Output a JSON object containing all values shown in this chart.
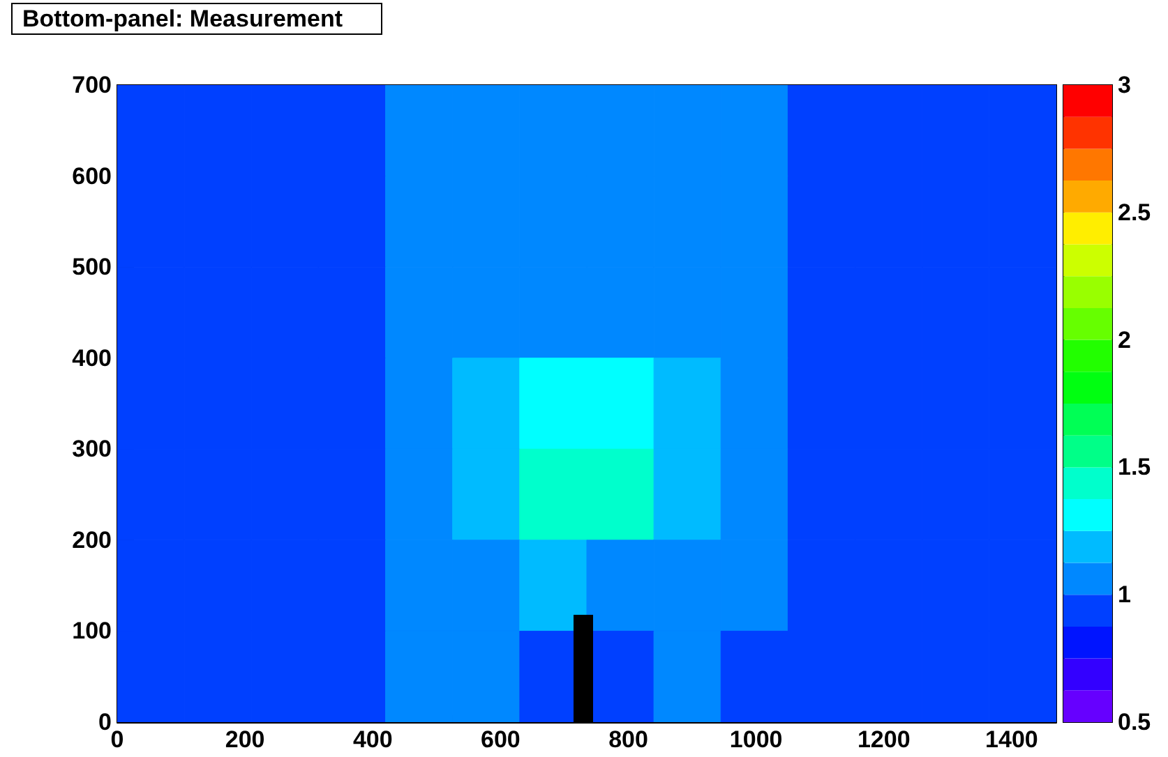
{
  "chart_data": {
    "type": "heatmap",
    "title": "Bottom-panel: Measurement",
    "cells": [
      [
        0.94,
        0.94,
        0.94,
        0.94,
        1.06,
        1.06,
        1.06,
        1.06,
        1.06,
        1.06,
        0.94,
        0.94,
        0.94,
        0.94
      ],
      [
        0.94,
        0.94,
        0.94,
        0.94,
        1.06,
        1.06,
        1.06,
        1.06,
        1.06,
        1.06,
        0.94,
        0.94,
        0.94,
        0.94
      ],
      [
        0.94,
        0.94,
        0.94,
        0.94,
        1.06,
        1.06,
        1.06,
        1.06,
        1.06,
        1.06,
        0.94,
        0.94,
        0.94,
        0.94
      ],
      [
        0.94,
        0.94,
        0.94,
        0.94,
        1.06,
        1.19,
        1.31,
        1.31,
        1.19,
        1.06,
        0.94,
        0.94,
        0.94,
        0.94
      ],
      [
        0.94,
        0.94,
        0.94,
        0.94,
        1.06,
        1.19,
        1.44,
        1.44,
        1.19,
        1.06,
        0.94,
        0.94,
        0.94,
        0.94
      ],
      [
        0.94,
        0.94,
        0.94,
        0.94,
        1.06,
        1.06,
        1.19,
        1.06,
        1.06,
        1.06,
        0.94,
        0.94,
        0.94,
        0.94
      ],
      [
        0.94,
        0.94,
        0.94,
        0.94,
        1.06,
        1.06,
        0.94,
        0.94,
        1.06,
        0.94,
        0.94,
        0.94,
        0.94,
        0.94
      ]
    ],
    "xlim": [
      0,
      1470
    ],
    "xticks": [
      0,
      200,
      400,
      600,
      800,
      1000,
      1200,
      1400
    ],
    "ylim": [
      0,
      700
    ],
    "yticks": [
      0,
      100,
      200,
      300,
      400,
      500,
      600,
      700
    ],
    "clim": [
      0.5,
      3
    ],
    "cticks": [
      0.5,
      1,
      1.5,
      2,
      2.5,
      3
    ]
  }
}
